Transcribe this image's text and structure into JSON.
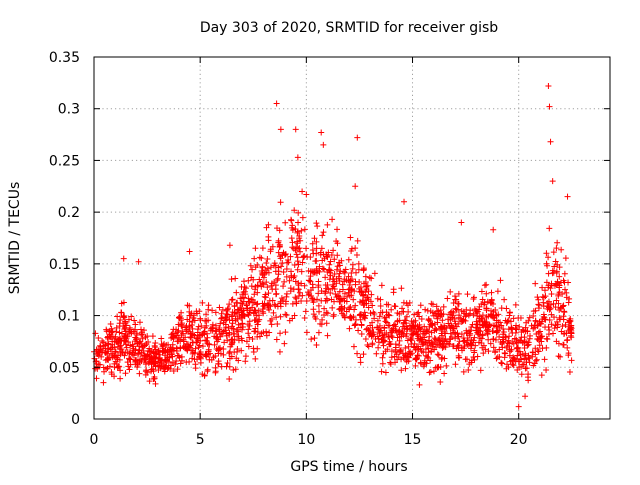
{
  "chart_data": {
    "type": "scatter",
    "title": "Day 303 of 2020, SRMTID for receiver gisb",
    "xlabel": "GPS time / hours",
    "ylabel": "SRMTID / TECUs",
    "xlim": [
      0,
      24.3
    ],
    "ylim": [
      0,
      0.35
    ],
    "x_ticks": [
      0,
      5,
      10,
      15,
      20
    ],
    "x_tick_labels": [
      "0",
      "5",
      "10",
      "15",
      "20"
    ],
    "y_ticks": [
      0,
      0.05,
      0.1,
      0.15,
      0.2,
      0.25,
      0.3,
      0.35
    ],
    "y_tick_labels": [
      "0",
      "0.05",
      "0.1",
      "0.15",
      "0.2",
      "0.25",
      "0.3",
      "0.35"
    ],
    "grid": true,
    "marker": "+",
    "marker_color": "#ff0000",
    "series": [
      {
        "name": "SRMTID",
        "note": "dense point cloud summarized as a sampled trend band: x = hour, y = central value, spread = approx half-range of the scatter at that hour",
        "x": [
          0,
          0.5,
          1,
          1.5,
          2,
          2.5,
          3,
          3.5,
          4,
          4.5,
          5,
          5.5,
          6,
          6.5,
          7,
          7.5,
          8,
          8.5,
          9,
          9.5,
          10,
          10.5,
          11,
          11.5,
          12,
          12.5,
          13,
          13.5,
          14,
          14.5,
          15,
          15.5,
          16,
          16.5,
          17,
          17.5,
          18,
          18.5,
          19,
          19.5,
          20,
          20.5,
          21,
          21.5,
          22,
          22.5
        ],
        "y": [
          0.06,
          0.065,
          0.07,
          0.085,
          0.07,
          0.06,
          0.055,
          0.06,
          0.075,
          0.085,
          0.08,
          0.075,
          0.08,
          0.085,
          0.095,
          0.11,
          0.12,
          0.13,
          0.14,
          0.15,
          0.14,
          0.135,
          0.14,
          0.13,
          0.12,
          0.115,
          0.1,
          0.09,
          0.085,
          0.085,
          0.075,
          0.075,
          0.08,
          0.08,
          0.09,
          0.085,
          0.09,
          0.095,
          0.085,
          0.08,
          0.07,
          0.07,
          0.09,
          0.12,
          0.11,
          0.09
        ],
        "spread": [
          0.025,
          0.03,
          0.035,
          0.045,
          0.035,
          0.03,
          0.03,
          0.03,
          0.035,
          0.045,
          0.045,
          0.04,
          0.045,
          0.05,
          0.05,
          0.06,
          0.07,
          0.08,
          0.08,
          0.08,
          0.07,
          0.07,
          0.065,
          0.06,
          0.07,
          0.065,
          0.05,
          0.05,
          0.045,
          0.05,
          0.045,
          0.04,
          0.045,
          0.045,
          0.05,
          0.05,
          0.05,
          0.05,
          0.05,
          0.045,
          0.04,
          0.045,
          0.06,
          0.08,
          0.07,
          0.05
        ],
        "outliers": [
          [
            8.6,
            0.305
          ],
          [
            8.8,
            0.28
          ],
          [
            9.5,
            0.28
          ],
          [
            9.6,
            0.253
          ],
          [
            10.7,
            0.277
          ],
          [
            10.8,
            0.265
          ],
          [
            12.4,
            0.272
          ],
          [
            21.4,
            0.322
          ],
          [
            21.45,
            0.302
          ],
          [
            21.5,
            0.268
          ],
          [
            9.8,
            0.22
          ],
          [
            10.0,
            0.217
          ],
          [
            12.3,
            0.225
          ],
          [
            14.6,
            0.21
          ],
          [
            21.6,
            0.23
          ],
          [
            22.3,
            0.215
          ],
          [
            1.4,
            0.155
          ],
          [
            2.1,
            0.152
          ],
          [
            4.5,
            0.162
          ],
          [
            6.4,
            0.168
          ],
          [
            17.3,
            0.19
          ],
          [
            18.8,
            0.183
          ],
          [
            20.0,
            0.012
          ],
          [
            20.3,
            0.022
          ]
        ]
      }
    ]
  }
}
